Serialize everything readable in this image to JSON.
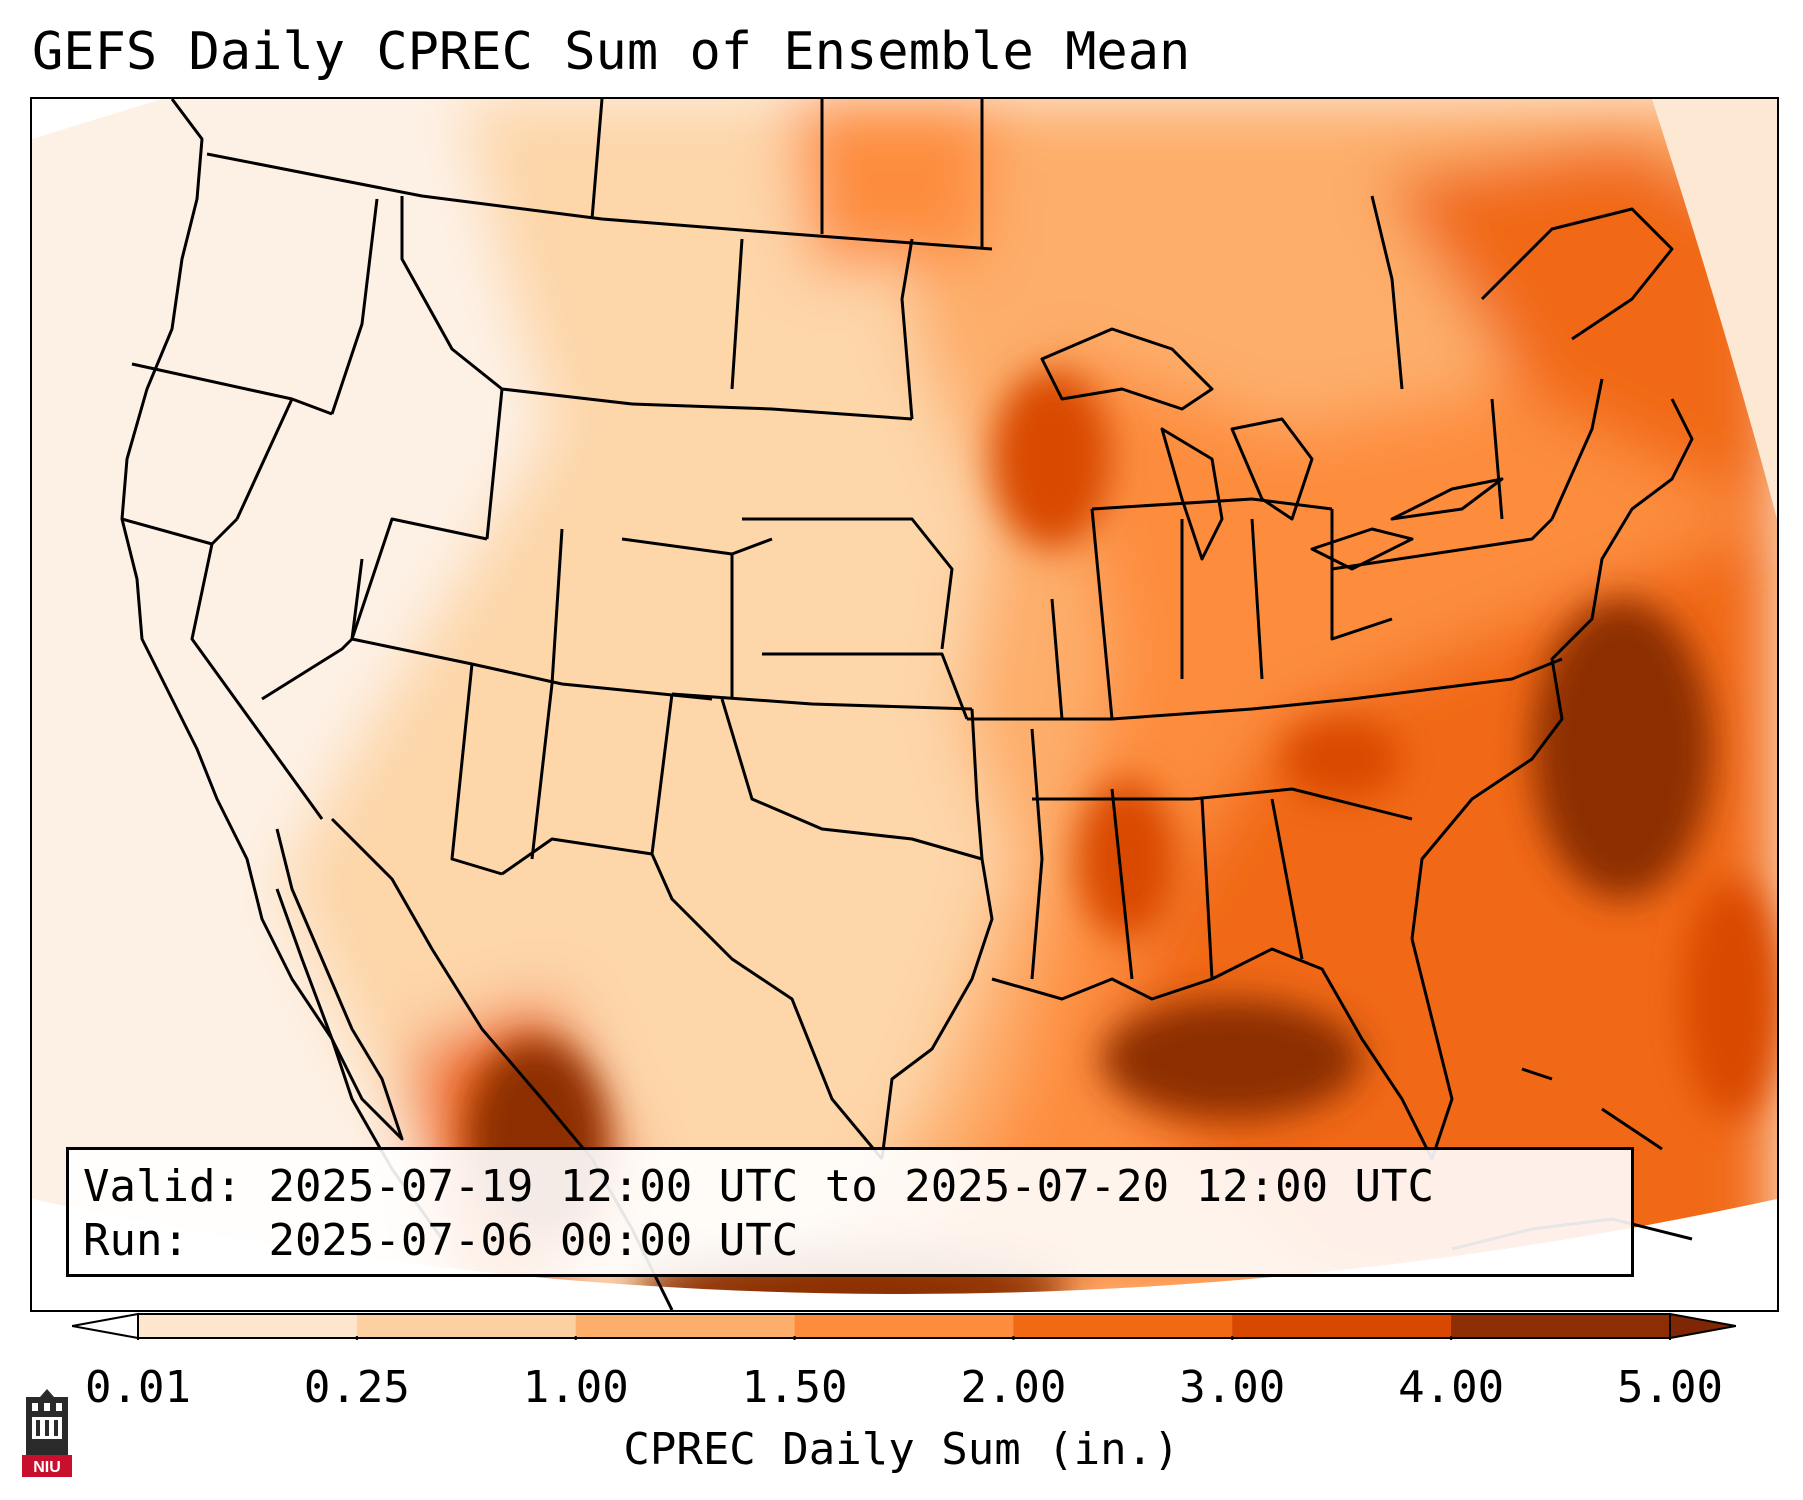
{
  "title": "GEFS Daily CPREC Sum of Ensemble Mean",
  "info": {
    "valid_label": "Valid:",
    "valid_value": "2025-07-19 12:00 UTC to 2025-07-20 12:00 UTC",
    "run_label": "Run:",
    "run_value": "2025-07-06 00:00 UTC"
  },
  "colorbar": {
    "label": "CPREC Daily Sum (in.)",
    "ticks": [
      "0.01",
      "0.25",
      "1.00",
      "1.50",
      "2.00",
      "3.00",
      "4.00",
      "5.00"
    ],
    "colors": [
      "#fff5eb",
      "#fee6ce",
      "#fdd0a2",
      "#fdae6b",
      "#fd8d3c",
      "#f16913",
      "#d94801",
      "#8c2d04"
    ],
    "under_color": "#ffffff",
    "over_color": "#7f2704"
  },
  "logo": {
    "text": "NIU",
    "color": "#c8102e"
  }
}
